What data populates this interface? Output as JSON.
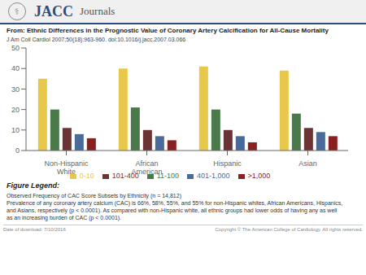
{
  "chart_data": {
    "type": "bar",
    "title": "From: Ethnic Differences in the Prognostic Value of Coronary Artery Calcification for All-Cause Mortality",
    "subtitle": "J Am Coll Cardiol 2007;50(18):963-960. doi:10.1016/j.jacc.2007.03.066",
    "categories": [
      "Non-Hispanic\nWhite",
      "African\nAmerican",
      "Hispanic",
      "Asian"
    ],
    "series": [
      {
        "name": "0-10",
        "color": "#E8C84A",
        "values": [
          35,
          40,
          41,
          39
        ]
      },
      {
        "name": "11-100",
        "color": "#4A7A4A",
        "values": [
          20,
          21,
          20,
          18
        ]
      },
      {
        "name": "101-400",
        "color": "#6B3333",
        "values": [
          11,
          10,
          10,
          11
        ]
      },
      {
        "name": "401-1,000",
        "color": "#4A6A9A",
        "values": [
          8,
          7,
          7,
          9
        ]
      },
      {
        "name": ">1,000",
        "color": "#8B2020",
        "values": [
          6,
          5,
          4,
          7
        ]
      }
    ],
    "ylim": [
      0,
      50
    ],
    "yticks": [
      0,
      10,
      20,
      30,
      40,
      50
    ],
    "grid": false,
    "legend": "bottom",
    "annotations": [
      "JACC",
      "Journals",
      "⚕",
      "Figure Legend:",
      "Observed Frequency of CAC Score Subsets by Ethnicity (n = 14,812)\nPrevalence of any coronary artery calcium (CAC) is 66%, 58%, 55%, and 55% for non-Hispanic whites, African Americans, Hispanics,\nand Asians, respectively (p < 0.0001). As compared with non-Hispanic white, all ethnic groups had lower odds of having any as well\nas an increasing burden of CAC (p < 0.0001).",
      "Date of download: 7/10/2016",
      "Copyright © The American College of Cardiology. All rights reserved."
    ]
  }
}
